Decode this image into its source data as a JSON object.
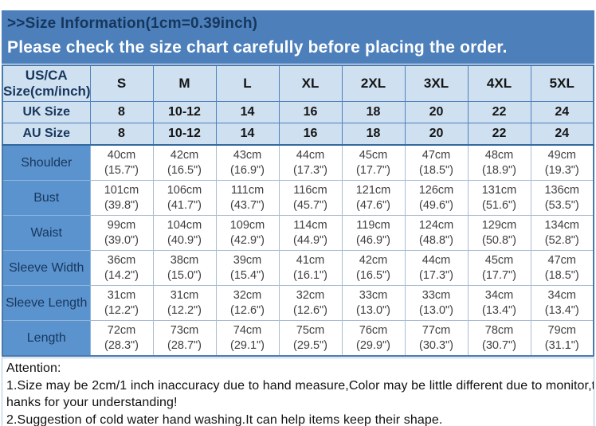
{
  "banner": {
    "title": ">>Size Information(1cm=0.39inch)",
    "subtitle": "Please check the size chart carefully before placing the order."
  },
  "size_chart": {
    "corner_header_line1": "US/CA",
    "corner_header_line2": "Size(cm/inch)",
    "size_columns": [
      "S",
      "M",
      "L",
      "XL",
      "2XL",
      "3XL",
      "4XL",
      "5XL"
    ],
    "region_rows": [
      {
        "label": "UK Size",
        "values": [
          "8",
          "10-12",
          "14",
          "16",
          "18",
          "20",
          "22",
          "24"
        ]
      },
      {
        "label": "AU Size",
        "values": [
          "8",
          "10-12",
          "14",
          "16",
          "18",
          "20",
          "22",
          "24"
        ]
      }
    ],
    "measurement_rows": [
      {
        "label": "Shoulder",
        "cm": [
          "40cm",
          "42cm",
          "43cm",
          "44cm",
          "45cm",
          "47cm",
          "48cm",
          "49cm"
        ],
        "inch": [
          "(15.7\")",
          "(16.5\")",
          "(16.9\")",
          "(17.3\")",
          "(17.7\")",
          "(18.5\")",
          "(18.9\")",
          "(19.3\")"
        ]
      },
      {
        "label": "Bust",
        "cm": [
          "101cm",
          "106cm",
          "111cm",
          "116cm",
          "121cm",
          "126cm",
          "131cm",
          "136cm"
        ],
        "inch": [
          "(39.8\")",
          "(41.7\")",
          "(43.7\")",
          "(45.7\")",
          "(47.6\")",
          "(49.6\")",
          "(51.6\")",
          "(53.5\")"
        ]
      },
      {
        "label": "Waist",
        "cm": [
          "99cm",
          "104cm",
          "109cm",
          "114cm",
          "119cm",
          "124cm",
          "129cm",
          "134cm"
        ],
        "inch": [
          "(39.0\")",
          "(40.9\")",
          "(42.9\")",
          "(44.9\")",
          "(46.9\")",
          "(48.8\")",
          "(50.8\")",
          "(52.8\")"
        ]
      },
      {
        "label": "Sleeve Width",
        "cm": [
          "36cm",
          "38cm",
          "39cm",
          "41cm",
          "42cm",
          "44cm",
          "45cm",
          "47cm"
        ],
        "inch": [
          "(14.2\")",
          "(15.0\")",
          "(15.4\")",
          "(16.1\")",
          "(16.5\")",
          "(17.3\")",
          "(17.7\")",
          "(18.5\")"
        ]
      },
      {
        "label": "Sleeve Length",
        "cm": [
          "31cm",
          "31cm",
          "32cm",
          "32cm",
          "33cm",
          "33cm",
          "34cm",
          "34cm"
        ],
        "inch": [
          "(12.2\")",
          "(12.2\")",
          "(12.6\")",
          "(12.6\")",
          "(13.0\")",
          "(13.0\")",
          "(13.4\")",
          "(13.4\")"
        ]
      },
      {
        "label": "Length",
        "cm": [
          "72cm",
          "73cm",
          "74cm",
          "75cm",
          "76cm",
          "77cm",
          "78cm",
          "79cm"
        ],
        "inch": [
          "(28.3\")",
          "(28.7\")",
          "(29.1\")",
          "(29.5\")",
          "(29.9\")",
          "(30.3\")",
          "(30.7\")",
          "(31.1\")"
        ]
      }
    ]
  },
  "attention": {
    "lines": [
      "Attention:",
      "1.Size may be 2cm/1 inch inaccuracy due to hand measure,Color may be little different due to monitor,t",
      "hanks for your understanding!",
      "2.Suggestion of cold water hand washing.It can help items keep their shape."
    ]
  },
  "colors": {
    "banner_bg": "#4d80bb",
    "banner_title_text": "#16365c",
    "banner_subtitle_text": "#ffffff",
    "header_bg": "#cfe0f0",
    "label_column_bg": "#5b93ce",
    "navy_text": "#17375d",
    "data_text": "#3f3f3f",
    "grid_dark": "#4f81bd",
    "grid_light": "#a8bcd4",
    "attention_border": "#a9c7e2"
  }
}
